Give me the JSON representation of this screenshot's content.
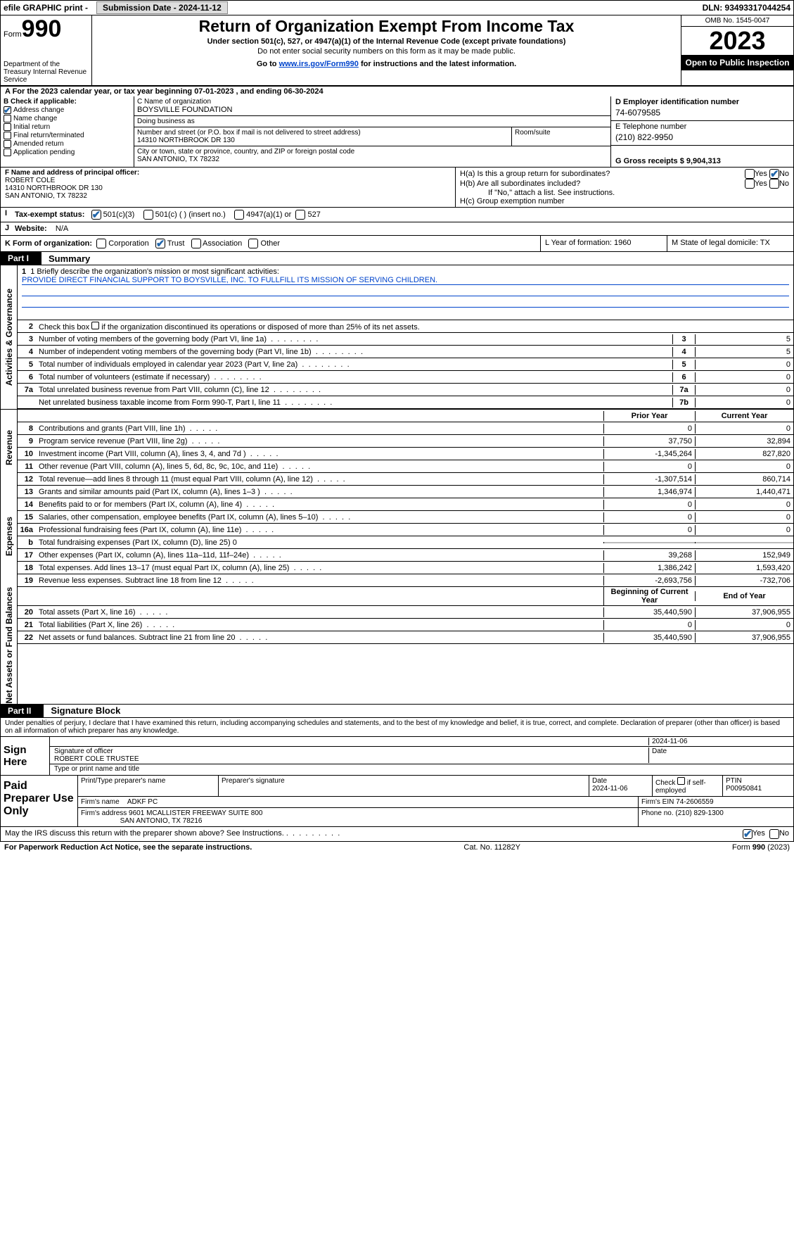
{
  "topbar": {
    "efile": "efile GRAPHIC print -",
    "submission_label": "Submission Date - 2024-11-12",
    "dln": "DLN: 93493317044254"
  },
  "header": {
    "form_label": "Form",
    "form_number": "990",
    "dept": "Department of the Treasury Internal Revenue Service",
    "title": "Return of Organization Exempt From Income Tax",
    "sub1": "Under section 501(c), 527, or 4947(a)(1) of the Internal Revenue Code (except private foundations)",
    "sub2": "Do not enter social security numbers on this form as it may be made public.",
    "sub3_pre": "Go to ",
    "sub3_link": "www.irs.gov/Form990",
    "sub3_post": " for instructions and the latest information.",
    "omb": "OMB No. 1545-0047",
    "year": "2023",
    "open": "Open to Public Inspection"
  },
  "period": "A For the 2023 calendar year, or tax year beginning 07-01-2023   , and ending 06-30-2024",
  "colB": {
    "label": "B Check if applicable:",
    "opts": [
      "Address change",
      "Name change",
      "Initial return",
      "Final return/terminated",
      "Amended return",
      "Application pending"
    ],
    "checked": [
      true,
      false,
      false,
      false,
      false,
      false
    ]
  },
  "colC": {
    "name_label": "C Name of organization",
    "name": "BOYSVILLE FOUNDATION",
    "dba_label": "Doing business as",
    "dba": "",
    "street_label": "Number and street (or P.O. box if mail is not delivered to street address)",
    "street": "14310 NORTHBROOK DR 130",
    "room_label": "Room/suite",
    "city_label": "City or town, state or province, country, and ZIP or foreign postal code",
    "city": "SAN ANTONIO, TX  78232"
  },
  "colD": {
    "ein_label": "D Employer identification number",
    "ein": "74-6079585",
    "tel_label": "E Telephone number",
    "tel": "(210) 822-9950",
    "gross_label": "G Gross receipts $ 9,904,313"
  },
  "F": {
    "label": "F  Name and address of principal officer:",
    "name": "ROBERT COLE",
    "addr1": "14310 NORTHBROOK DR 130",
    "addr2": "SAN ANTONIO, TX  78232"
  },
  "H": {
    "a": "H(a)  Is this a group return for subordinates?",
    "b": "H(b)  Are all subordinates included?",
    "b_note": "If \"No,\" attach a list. See instructions.",
    "c": "H(c)  Group exemption number"
  },
  "I": {
    "label": "Tax-exempt status:",
    "opts": [
      "501(c)(3)",
      "501(c) (  ) (insert no.)",
      "4947(a)(1) or",
      "527"
    ]
  },
  "J": {
    "label": "Website:",
    "val": "N/A"
  },
  "K": {
    "label": "K Form of organization:",
    "opts": [
      "Corporation",
      "Trust",
      "Association",
      "Other"
    ]
  },
  "L": "L Year of formation: 1960",
  "M": "M State of legal domicile: TX",
  "part1": {
    "tag": "Part I",
    "title": "Summary"
  },
  "mission": {
    "label": "1   Briefly describe the organization's mission or most significant activities:",
    "text": "PROVIDE DIRECT FINANCIAL SUPPORT TO BOYSVILLE, INC. TO FULLFILL ITS MISSION OF SERVING CHILDREN."
  },
  "gov_rows": [
    {
      "n": "2",
      "d": "Check this box  if the organization discontinued its operations or disposed of more than 25% of its net assets.",
      "box": "",
      "v": "",
      "chk": true
    },
    {
      "n": "3",
      "d": "Number of voting members of the governing body (Part VI, line 1a)",
      "box": "3",
      "v": "5"
    },
    {
      "n": "4",
      "d": "Number of independent voting members of the governing body (Part VI, line 1b)",
      "box": "4",
      "v": "5"
    },
    {
      "n": "5",
      "d": "Total number of individuals employed in calendar year 2023 (Part V, line 2a)",
      "box": "5",
      "v": "0"
    },
    {
      "n": "6",
      "d": "Total number of volunteers (estimate if necessary)",
      "box": "6",
      "v": "0"
    },
    {
      "n": "7a",
      "d": "Total unrelated business revenue from Part VIII, column (C), line 12",
      "box": "7a",
      "v": "0"
    },
    {
      "n": "",
      "d": "Net unrelated business taxable income from Form 990-T, Part I, line 11",
      "box": "7b",
      "v": "0"
    }
  ],
  "rev_hdr": {
    "py": "Prior Year",
    "cy": "Current Year"
  },
  "rev_rows": [
    {
      "n": "8",
      "d": "Contributions and grants (Part VIII, line 1h)",
      "py": "0",
      "cy": "0"
    },
    {
      "n": "9",
      "d": "Program service revenue (Part VIII, line 2g)",
      "py": "37,750",
      "cy": "32,894"
    },
    {
      "n": "10",
      "d": "Investment income (Part VIII, column (A), lines 3, 4, and 7d )",
      "py": "-1,345,264",
      "cy": "827,820"
    },
    {
      "n": "11",
      "d": "Other revenue (Part VIII, column (A), lines 5, 6d, 8c, 9c, 10c, and 11e)",
      "py": "0",
      "cy": "0"
    },
    {
      "n": "12",
      "d": "Total revenue—add lines 8 through 11 (must equal Part VIII, column (A), line 12)",
      "py": "-1,307,514",
      "cy": "860,714"
    }
  ],
  "exp_rows": [
    {
      "n": "13",
      "d": "Grants and similar amounts paid (Part IX, column (A), lines 1–3 )",
      "py": "1,346,974",
      "cy": "1,440,471"
    },
    {
      "n": "14",
      "d": "Benefits paid to or for members (Part IX, column (A), line 4)",
      "py": "0",
      "cy": "0"
    },
    {
      "n": "15",
      "d": "Salaries, other compensation, employee benefits (Part IX, column (A), lines 5–10)",
      "py": "0",
      "cy": "0"
    },
    {
      "n": "16a",
      "d": "Professional fundraising fees (Part IX, column (A), line 11e)",
      "py": "0",
      "cy": "0"
    },
    {
      "n": "b",
      "d": "Total fundraising expenses (Part IX, column (D), line 25) 0",
      "py": "",
      "cy": "",
      "grey": true
    },
    {
      "n": "17",
      "d": "Other expenses (Part IX, column (A), lines 11a–11d, 11f–24e)",
      "py": "39,268",
      "cy": "152,949"
    },
    {
      "n": "18",
      "d": "Total expenses. Add lines 13–17 (must equal Part IX, column (A), line 25)",
      "py": "1,386,242",
      "cy": "1,593,420"
    },
    {
      "n": "19",
      "d": "Revenue less expenses. Subtract line 18 from line 12",
      "py": "-2,693,756",
      "cy": "-732,706"
    }
  ],
  "net_hdr": {
    "py": "Beginning of Current Year",
    "cy": "End of Year"
  },
  "net_rows": [
    {
      "n": "20",
      "d": "Total assets (Part X, line 16)",
      "py": "35,440,590",
      "cy": "37,906,955"
    },
    {
      "n": "21",
      "d": "Total liabilities (Part X, line 26)",
      "py": "0",
      "cy": "0"
    },
    {
      "n": "22",
      "d": "Net assets or fund balances. Subtract line 21 from line 20",
      "py": "35,440,590",
      "cy": "37,906,955"
    }
  ],
  "part2": {
    "tag": "Part II",
    "title": "Signature Block"
  },
  "perjury": "Under penalties of perjury, I declare that I have examined this return, including accompanying schedules and statements, and to the best of my knowledge and belief, it is true, correct, and complete. Declaration of preparer (other than officer) is based on all information of which preparer has any knowledge.",
  "sign": {
    "here": "Sign Here",
    "date": "2024-11-06",
    "sig_label": "Signature of officer",
    "name": "ROBERT COLE  TRUSTEE",
    "name_label": "Type or print name and title",
    "date_label": "Date"
  },
  "prep": {
    "label": "Paid Preparer Use Only",
    "h1": "Print/Type preparer's name",
    "h2": "Preparer's signature",
    "h3": "Date",
    "h3v": "2024-11-06",
    "h4": "Check  if self-employed",
    "h5": "PTIN",
    "h5v": "P00950841",
    "firm_name_l": "Firm's name",
    "firm_name": "ADKF PC",
    "firm_ein_l": "Firm's EIN",
    "firm_ein": "74-2606559",
    "firm_addr_l": "Firm's address",
    "firm_addr1": "9601 MCALLISTER FREEWAY SUITE 800",
    "firm_addr2": "SAN ANTONIO, TX  78216",
    "phone_l": "Phone no.",
    "phone": "(210) 829-1300"
  },
  "discuss": "May the IRS discuss this return with the preparer shown above? See Instructions.",
  "footer": {
    "l": "For Paperwork Reduction Act Notice, see the separate instructions.",
    "c": "Cat. No. 11282Y",
    "r": "Form 990 (2023)"
  },
  "vtabs": {
    "gov": "Activities & Governance",
    "rev": "Revenue",
    "exp": "Expenses",
    "net": "Net Assets or Fund Balances"
  }
}
